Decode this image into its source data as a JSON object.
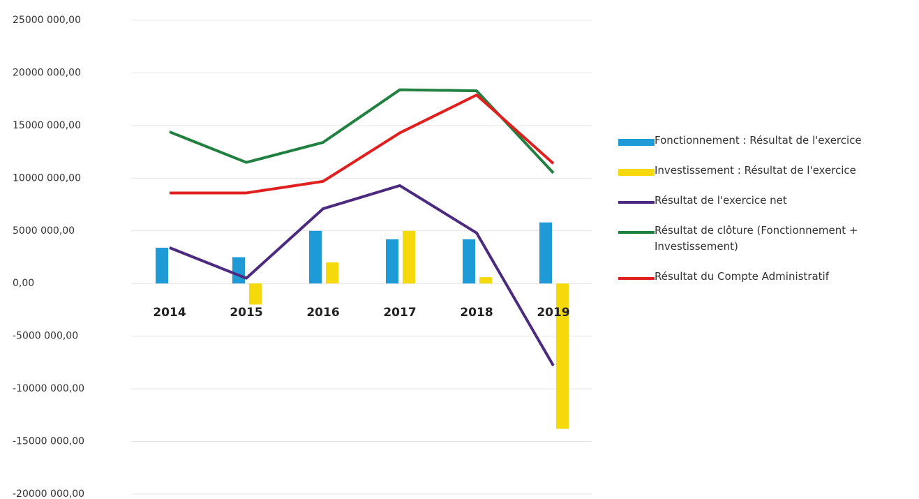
{
  "chart_data": {
    "type": "bar",
    "categories": [
      "2014",
      "2015",
      "2016",
      "2017",
      "2018",
      "2019"
    ],
    "series": [
      {
        "name": "Fonctionnement : Résultat de l'exercice",
        "type": "bar",
        "color": "#1e9bd7",
        "values": [
          3400000,
          2500000,
          5000000,
          4200000,
          4200000,
          5800000
        ]
      },
      {
        "name": "Investissement : Résultat de l'exercice",
        "type": "bar",
        "color": "#f5d90a",
        "values": [
          0,
          -2000000,
          2000000,
          5000000,
          600000,
          -13800000
        ]
      },
      {
        "name": "Résultat de l'exercice net",
        "type": "line",
        "color": "#4b2a80",
        "values": [
          3400000,
          500000,
          7100000,
          9300000,
          4800000,
          -7800000
        ]
      },
      {
        "name": "Résultat de clôture (Fonctionnement + Investissement)",
        "type": "line",
        "color": "#1f8040",
        "values": [
          14400000,
          11500000,
          13400000,
          18400000,
          18300000,
          10500000
        ]
      },
      {
        "name": "Résultat du Compte Administratif",
        "type": "line",
        "color": "#e0201e",
        "values": [
          8600000,
          8600000,
          9700000,
          14300000,
          17900000,
          11400000
        ]
      }
    ],
    "ylim": [
      -20000000,
      25000000
    ],
    "yticks": [
      {
        "value": -20000000,
        "label": "-20000 000,00"
      },
      {
        "value": -15000000,
        "label": "-15000 000,00"
      },
      {
        "value": -10000000,
        "label": "-10000 000,00"
      },
      {
        "value": -5000000,
        "label": "-5000 000,00"
      },
      {
        "value": 0,
        "label": "0,00"
      },
      {
        "value": 5000000,
        "label": "5000 000,00"
      },
      {
        "value": 10000000,
        "label": "10000 000,00"
      },
      {
        "value": 15000000,
        "label": "15000 000,00"
      },
      {
        "value": 20000000,
        "label": "20000 000,00"
      },
      {
        "value": 25000000,
        "label": "25000 000,00"
      }
    ],
    "grid": true,
    "legend": "right"
  }
}
